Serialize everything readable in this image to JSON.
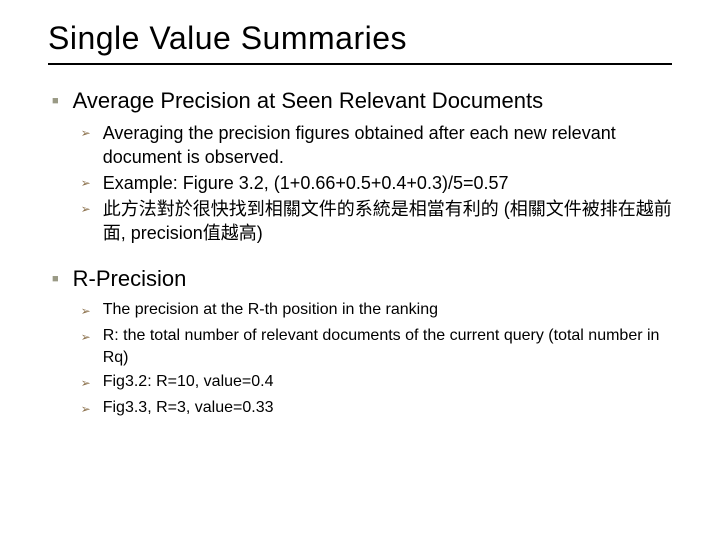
{
  "title": "Single Value Summaries",
  "colors": {
    "title_color": "#000000",
    "underline_color": "#000000",
    "l1_bullet_color": "#9a9a85",
    "l2_bullet_color": "#8a6f4a",
    "text_color": "#000000",
    "background": "#ffffff"
  },
  "typography": {
    "title_fontsize": 32,
    "l1_head_fontsize": 22,
    "l2_text_fontsize": 18,
    "l2_text_small_fontsize": 16,
    "font_family": "Verdana"
  },
  "bullets": {
    "l1_glyph": "■",
    "l2_glyph": "➢"
  },
  "sections": [
    {
      "head": "Average Precision at Seen Relevant Documents",
      "items": [
        "Averaging the precision figures obtained after each new relevant document is observed.",
        "Example: Figure 3.2, (1+0.66+0.5+0.4+0.3)/5=0.57",
        "此方法對於很快找到相關文件的系統是相當有利的 (相關文件被排在越前面, precision值越高)"
      ],
      "small": false
    },
    {
      "head": "R-Precision",
      "items": [
        "The precision at the R-th position in the ranking",
        "R: the total number of relevant documents of the current query (total number in Rq)",
        "Fig3.2: R=10, value=0.4",
        "Fig3.3, R=3, value=0.33"
      ],
      "small": true
    }
  ]
}
